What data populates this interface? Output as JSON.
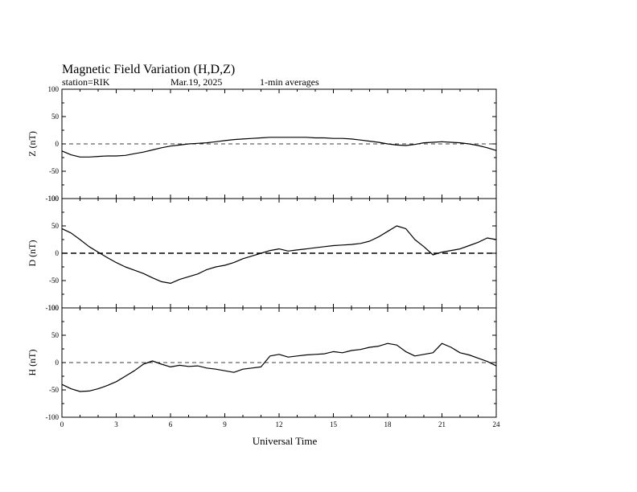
{
  "chart_data": {
    "type": "line",
    "title": "Magnetic Field Variation (H,D,Z)",
    "station": "station=RIK",
    "date": "Mar.19, 2025",
    "averaging": "1-min averages",
    "xlabel": "Universal Time",
    "xlim": [
      0,
      24
    ],
    "xticks": [
      0,
      3,
      6,
      9,
      12,
      15,
      18,
      21,
      24
    ],
    "grid": false,
    "panels": [
      {
        "ylabel": "Z (nT)",
        "ylim": [
          -100,
          100
        ],
        "yticks": [
          100,
          50,
          0,
          -50,
          -100
        ],
        "zero_line": "dashed",
        "x": [
          0,
          0.5,
          1,
          1.5,
          2,
          2.5,
          3,
          3.5,
          4,
          4.5,
          5,
          5.5,
          6,
          6.5,
          7,
          7.5,
          8,
          8.5,
          9,
          9.5,
          10,
          10.5,
          11,
          11.5,
          12,
          12.5,
          13,
          13.5,
          14,
          14.5,
          15,
          15.5,
          16,
          16.5,
          17,
          17.5,
          18,
          18.5,
          19,
          19.5,
          20,
          20.5,
          21,
          21.5,
          22,
          22.5,
          23,
          23.5,
          24
        ],
        "values": [
          -13,
          -20,
          -24,
          -24,
          -23,
          -22,
          -22,
          -21,
          -18,
          -15,
          -11,
          -7,
          -4,
          -2,
          0,
          1,
          2,
          4,
          6,
          8,
          9,
          10,
          11,
          12,
          12,
          12,
          12,
          12,
          11,
          11,
          10,
          10,
          9,
          7,
          5,
          3,
          0,
          -2,
          -3,
          -1,
          2,
          3,
          4,
          3,
          2,
          0,
          -3,
          -7,
          -12
        ]
      },
      {
        "ylabel": "D (nT)",
        "ylim": [
          -100,
          100
        ],
        "yticks": [
          100,
          50,
          0,
          -50,
          -100
        ],
        "zero_line": "dashed",
        "x": [
          0,
          0.5,
          1,
          1.5,
          2,
          2.5,
          3,
          3.5,
          4,
          4.5,
          5,
          5.5,
          6,
          6.5,
          7,
          7.5,
          8,
          8.5,
          9,
          9.5,
          10,
          10.5,
          11,
          11.5,
          12,
          12.5,
          13,
          13.5,
          14,
          14.5,
          15,
          15.5,
          16,
          16.5,
          17,
          17.5,
          18,
          18.5,
          19,
          19.5,
          20,
          20.5,
          21,
          21.5,
          22,
          22.5,
          23,
          23.5,
          24
        ],
        "values": [
          45,
          37,
          25,
          12,
          2,
          -8,
          -17,
          -25,
          -31,
          -37,
          -45,
          -52,
          -55,
          -48,
          -43,
          -38,
          -30,
          -25,
          -22,
          -17,
          -10,
          -5,
          0,
          5,
          8,
          4,
          6,
          8,
          10,
          12,
          14,
          15,
          16,
          18,
          22,
          30,
          40,
          50,
          45,
          25,
          12,
          -3,
          2,
          5,
          8,
          14,
          20,
          28,
          25
        ]
      },
      {
        "ylabel": "H (nT)",
        "ylim": [
          -100,
          100
        ],
        "yticks": [
          100,
          50,
          0,
          -50,
          -100
        ],
        "zero_line": "dashed",
        "x": [
          0,
          0.5,
          1,
          1.5,
          2,
          2.5,
          3,
          3.5,
          4,
          4.5,
          5,
          5.5,
          6,
          6.5,
          7,
          7.5,
          8,
          8.5,
          9,
          9.5,
          10,
          10.5,
          11,
          11.5,
          12,
          12.5,
          13,
          13.5,
          14,
          14.5,
          15,
          15.5,
          16,
          16.5,
          17,
          17.5,
          18,
          18.5,
          19,
          19.5,
          20,
          20.5,
          21,
          21.5,
          22,
          22.5,
          23,
          23.5,
          24
        ],
        "values": [
          -40,
          -48,
          -53,
          -52,
          -48,
          -42,
          -35,
          -25,
          -15,
          -3,
          3,
          -3,
          -8,
          -5,
          -7,
          -6,
          -10,
          -12,
          -15,
          -18,
          -12,
          -10,
          -8,
          12,
          15,
          10,
          12,
          14,
          15,
          16,
          20,
          18,
          22,
          24,
          28,
          30,
          35,
          32,
          20,
          12,
          15,
          18,
          35,
          28,
          18,
          14,
          8,
          2,
          -6
        ]
      }
    ]
  }
}
